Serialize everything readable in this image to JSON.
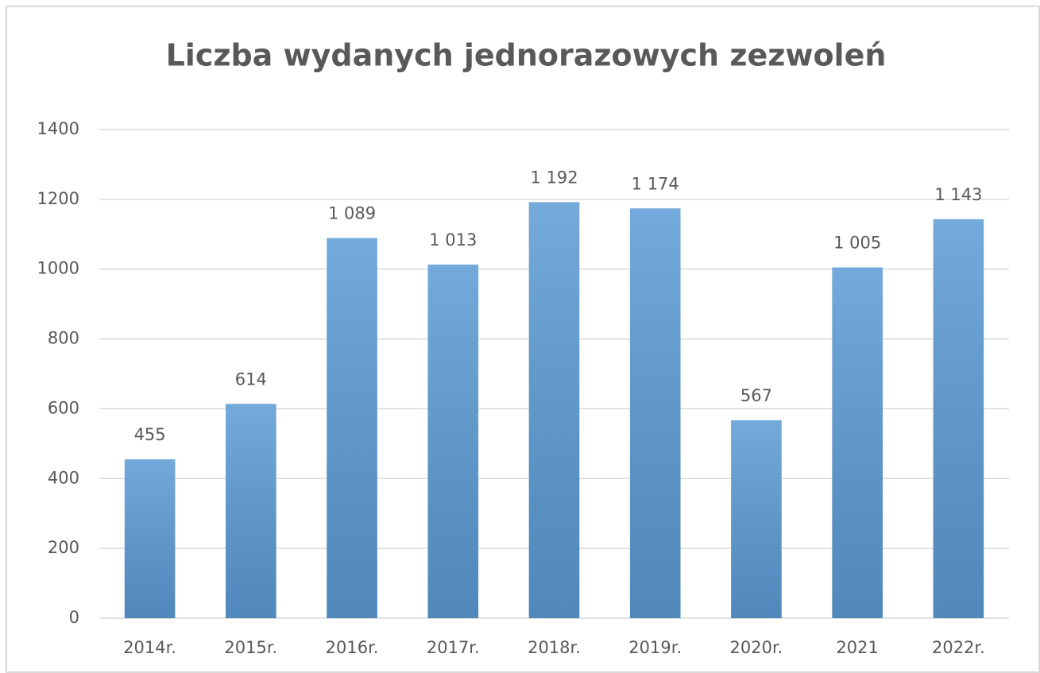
{
  "chart_data": {
    "type": "bar",
    "title": "Liczba wydanych jednorazowych zezwoleń",
    "categories": [
      "2014r.",
      "2015r.",
      "2016r.",
      "2017r.",
      "2018r.",
      "2019r.",
      "2020r.",
      "2021",
      "2022r."
    ],
    "values": [
      455,
      614,
      1089,
      1013,
      1192,
      1174,
      567,
      1005,
      1143
    ],
    "value_labels": [
      "455",
      "614",
      "1 089",
      "1 013",
      "1 192",
      "1 174",
      "567",
      "1 005",
      "1 143"
    ],
    "color": "#5b9bd5",
    "ylim": [
      0,
      1400
    ],
    "yticks": [
      0,
      200,
      400,
      600,
      800,
      1000,
      1200,
      1400
    ],
    "grid": true
  }
}
